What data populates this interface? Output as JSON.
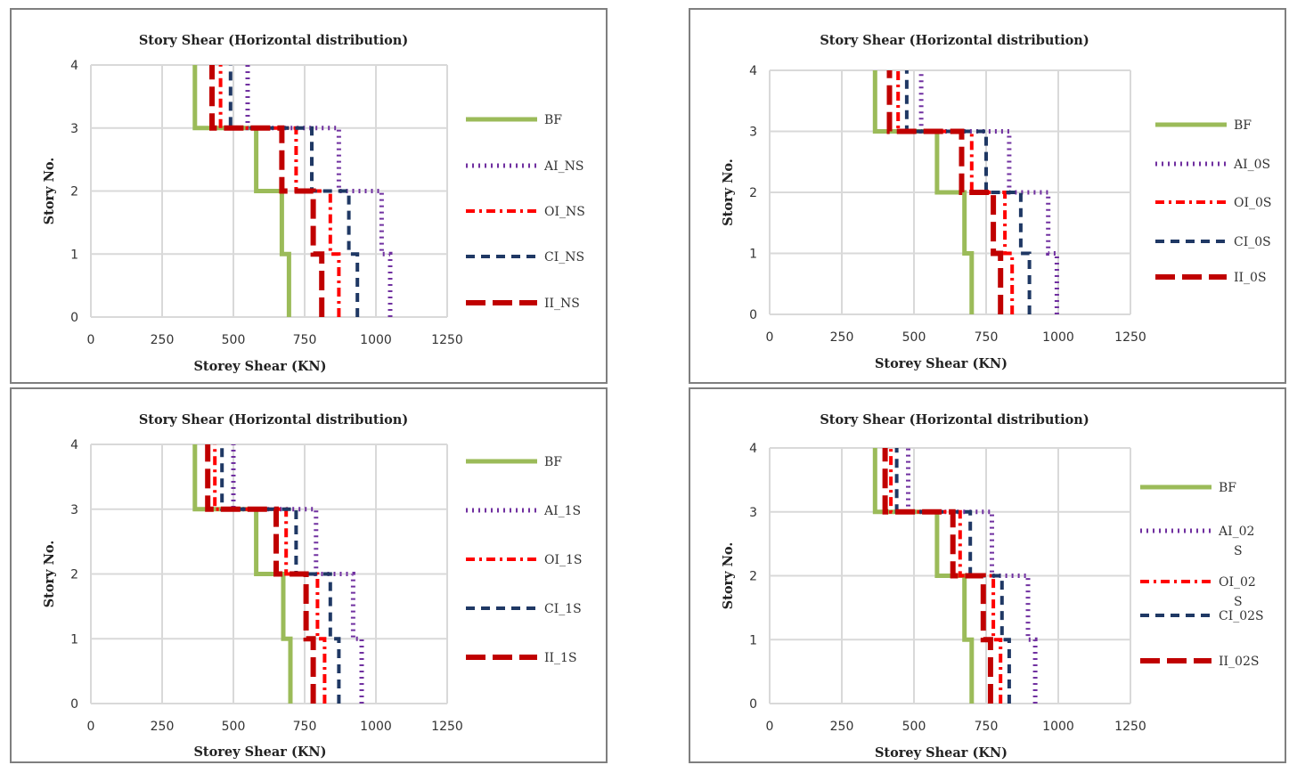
{
  "colors": {
    "BF": "#9bbb59",
    "AI": "#7030a0",
    "OI": "#ff0000",
    "CI": "#1f3864",
    "II": "#c00000",
    "grid": "#d9d9d9",
    "border": "#7f7f7f"
  },
  "chart_data": [
    {
      "type": "line",
      "title": "Story Shear (Horizontal distribution)",
      "xlabel": "Storey Shear (KN)",
      "ylabel": "Story No.",
      "xlim": [
        0,
        1250
      ],
      "ylim": [
        0,
        4
      ],
      "x_ticks": [
        "0",
        "250",
        "500",
        "750",
        "1000",
        "1250"
      ],
      "y_ticks": [
        "0",
        "1",
        "2",
        "3",
        "4"
      ],
      "grid": true,
      "legend_position": "right",
      "series": [
        {
          "name": "BF",
          "x": [
            695,
            695,
            670,
            670,
            580,
            580,
            365,
            365
          ],
          "y": [
            0,
            1,
            1,
            2,
            2,
            3,
            3,
            4
          ]
        },
        {
          "name": "AI_NS",
          "x": [
            1050,
            1050,
            1020,
            1020,
            870,
            870,
            550,
            550
          ],
          "y": [
            0,
            1,
            1,
            2,
            2,
            3,
            3,
            4
          ]
        },
        {
          "name": "OI_NS",
          "x": [
            870,
            870,
            840,
            840,
            720,
            720,
            455,
            455
          ],
          "y": [
            0,
            1,
            1,
            2,
            2,
            3,
            3,
            4
          ]
        },
        {
          "name": "CI_NS",
          "x": [
            935,
            935,
            905,
            905,
            775,
            775,
            490,
            490
          ],
          "y": [
            0,
            1,
            1,
            2,
            2,
            3,
            3,
            4
          ]
        },
        {
          "name": "II_NS",
          "x": [
            810,
            810,
            780,
            780,
            670,
            670,
            425,
            425
          ],
          "y": [
            0,
            1,
            1,
            2,
            2,
            3,
            3,
            4
          ]
        }
      ]
    },
    {
      "type": "line",
      "title": "Story Shear (Horizontal distribution)",
      "xlabel": "Storey Shear (KN)",
      "ylabel": "Story No.",
      "xlim": [
        0,
        1250
      ],
      "ylim": [
        0,
        4
      ],
      "x_ticks": [
        "0",
        "250",
        "500",
        "750",
        "1000",
        "1250"
      ],
      "y_ticks": [
        "0",
        "1",
        "2",
        "3",
        "4"
      ],
      "grid": true,
      "legend_position": "right",
      "series": [
        {
          "name": "BF",
          "x": [
            700,
            700,
            675,
            675,
            580,
            580,
            365,
            365
          ],
          "y": [
            0,
            1,
            1,
            2,
            2,
            3,
            3,
            4
          ]
        },
        {
          "name": "AI_0S",
          "x": [
            995,
            995,
            965,
            965,
            830,
            830,
            525,
            525
          ],
          "y": [
            0,
            1,
            1,
            2,
            2,
            3,
            3,
            4
          ]
        },
        {
          "name": "OI_0S",
          "x": [
            840,
            840,
            815,
            815,
            700,
            700,
            445,
            445
          ],
          "y": [
            0,
            1,
            1,
            2,
            2,
            3,
            3,
            4
          ]
        },
        {
          "name": "CI_0S",
          "x": [
            900,
            900,
            870,
            870,
            750,
            750,
            475,
            475
          ],
          "y": [
            0,
            1,
            1,
            2,
            2,
            3,
            3,
            4
          ]
        },
        {
          "name": "II_0S",
          "x": [
            800,
            800,
            775,
            775,
            665,
            665,
            415,
            415
          ],
          "y": [
            0,
            1,
            1,
            2,
            2,
            3,
            3,
            4
          ]
        }
      ]
    },
    {
      "type": "line",
      "title": "Story Shear (Horizontal distribution)",
      "xlabel": "Storey Shear (KN)",
      "ylabel": "Story No.",
      "xlim": [
        0,
        1250
      ],
      "ylim": [
        0,
        4
      ],
      "x_ticks": [
        "0",
        "250",
        "500",
        "750",
        "1000",
        "1250"
      ],
      "y_ticks": [
        "0",
        "1",
        "2",
        "3",
        "4"
      ],
      "grid": true,
      "legend_position": "right",
      "series": [
        {
          "name": "BF",
          "x": [
            700,
            700,
            675,
            675,
            580,
            580,
            365,
            365
          ],
          "y": [
            0,
            1,
            1,
            2,
            2,
            3,
            3,
            4
          ]
        },
        {
          "name": "AI_1S",
          "x": [
            950,
            950,
            920,
            920,
            790,
            790,
            500,
            500
          ],
          "y": [
            0,
            1,
            1,
            2,
            2,
            3,
            3,
            4
          ]
        },
        {
          "name": "OI_1S",
          "x": [
            820,
            820,
            795,
            795,
            685,
            685,
            435,
            435
          ],
          "y": [
            0,
            1,
            1,
            2,
            2,
            3,
            3,
            4
          ]
        },
        {
          "name": "CI_1S",
          "x": [
            870,
            870,
            840,
            840,
            720,
            720,
            460,
            460
          ],
          "y": [
            0,
            1,
            1,
            2,
            2,
            3,
            3,
            4
          ]
        },
        {
          "name": "II_1S",
          "x": [
            780,
            780,
            755,
            755,
            650,
            650,
            410,
            410
          ],
          "y": [
            0,
            1,
            1,
            2,
            2,
            3,
            3,
            4
          ]
        }
      ]
    },
    {
      "type": "line",
      "title": "Story Shear (Horizontal distribution)",
      "xlabel": "Storey Shear (KN)",
      "ylabel": "Story No.",
      "xlim": [
        0,
        1250
      ],
      "ylim": [
        0,
        4
      ],
      "x_ticks": [
        "0",
        "250",
        "500",
        "750",
        "1000",
        "1250"
      ],
      "y_ticks": [
        "0",
        "1",
        "2",
        "3",
        "4"
      ],
      "grid": true,
      "legend_position": "right",
      "series": [
        {
          "name": "BF",
          "x": [
            700,
            700,
            675,
            675,
            580,
            580,
            365,
            365
          ],
          "y": [
            0,
            1,
            1,
            2,
            2,
            3,
            3,
            4
          ]
        },
        {
          "name": "AI_02S",
          "x": [
            920,
            920,
            895,
            895,
            770,
            770,
            480,
            480
          ],
          "y": [
            0,
            1,
            1,
            2,
            2,
            3,
            3,
            4
          ]
        },
        {
          "name": "OI_02S",
          "x": [
            800,
            800,
            775,
            775,
            660,
            660,
            420,
            420
          ],
          "y": [
            0,
            1,
            1,
            2,
            2,
            3,
            3,
            4
          ]
        },
        {
          "name": "CI_02S",
          "x": [
            830,
            830,
            805,
            805,
            695,
            695,
            440,
            440
          ],
          "y": [
            0,
            1,
            1,
            2,
            2,
            3,
            3,
            4
          ]
        },
        {
          "name": "II_02S",
          "x": [
            765,
            765,
            740,
            740,
            635,
            635,
            400,
            400
          ],
          "y": [
            0,
            1,
            1,
            2,
            2,
            3,
            3,
            4
          ]
        }
      ]
    }
  ]
}
